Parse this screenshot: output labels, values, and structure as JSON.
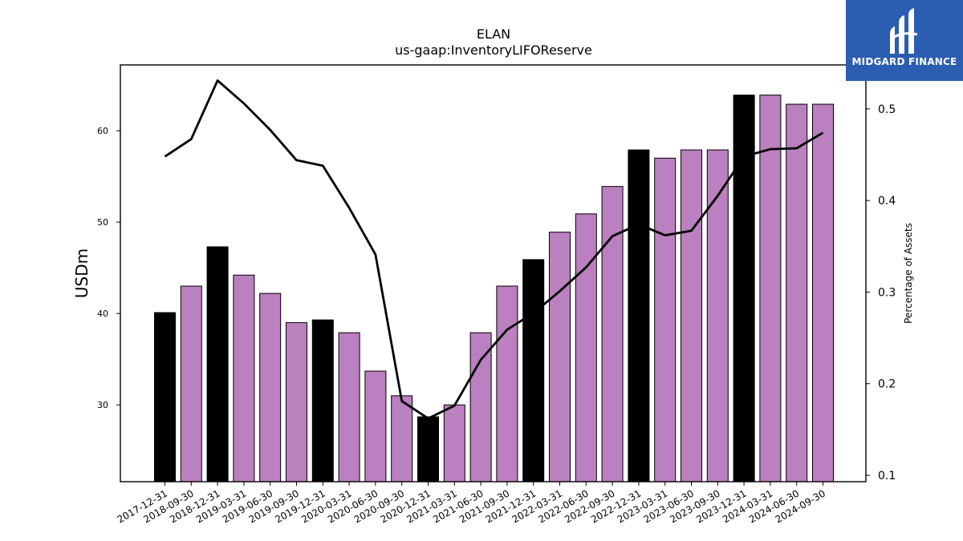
{
  "brand": {
    "name": "MIDGARD FINANCE",
    "icon": "midgard-logo-icon"
  },
  "chart_data": {
    "type": "bar",
    "title": "ELAN",
    "subtitle": "us-gaap:InventoryLIFOReserve",
    "ylabel": "USDm",
    "y2label": "Percentage of Assets",
    "ylim": [
      21.6,
      67.2
    ],
    "y2lim": [
      0.093,
      0.548
    ],
    "yticks": [
      30,
      40,
      50,
      60
    ],
    "y2ticks": [
      0.1,
      0.2,
      0.3,
      0.4,
      0.5
    ],
    "grid": false,
    "categories": [
      "2017-12-31",
      "2018-09-30",
      "2018-12-31",
      "2019-03-31",
      "2019-06-30",
      "2019-09-30",
      "2019-12-31",
      "2020-03-31",
      "2020-06-30",
      "2020-09-30",
      "2020-12-31",
      "2021-03-31",
      "2021-06-30",
      "2021-09-30",
      "2021-12-31",
      "2022-03-31",
      "2022-06-30",
      "2022-09-30",
      "2022-12-31",
      "2023-03-31",
      "2023-06-30",
      "2023-09-30",
      "2023-12-31",
      "2024-03-31",
      "2024-06-30",
      "2024-09-30"
    ],
    "series": [
      {
        "kind": "bar",
        "values": [
          40.1,
          43.0,
          47.3,
          44.2,
          42.2,
          39.0,
          39.3,
          37.9,
          33.7,
          31.0,
          28.7,
          30.0,
          37.9,
          43.0,
          45.9,
          48.9,
          50.9,
          53.9,
          57.9,
          57.0,
          57.9,
          57.9,
          63.9,
          63.9,
          62.9,
          62.9
        ],
        "fiscal_year_end": [
          true,
          false,
          true,
          false,
          false,
          false,
          true,
          false,
          false,
          false,
          true,
          false,
          false,
          false,
          true,
          false,
          false,
          false,
          true,
          false,
          false,
          false,
          true,
          false,
          false,
          false
        ],
        "color": "#bb80bf",
        "fy_color": "#000000"
      },
      {
        "kind": "line",
        "axis": "right",
        "values": [
          0.448,
          0.467,
          0.531,
          0.506,
          0.477,
          0.444,
          0.438,
          0.392,
          0.341,
          0.181,
          0.162,
          0.176,
          0.226,
          0.259,
          0.277,
          0.301,
          0.327,
          0.361,
          0.374,
          0.362,
          0.367,
          0.405,
          0.448,
          0.456,
          0.457,
          0.474
        ],
        "color": "#000000"
      }
    ]
  }
}
